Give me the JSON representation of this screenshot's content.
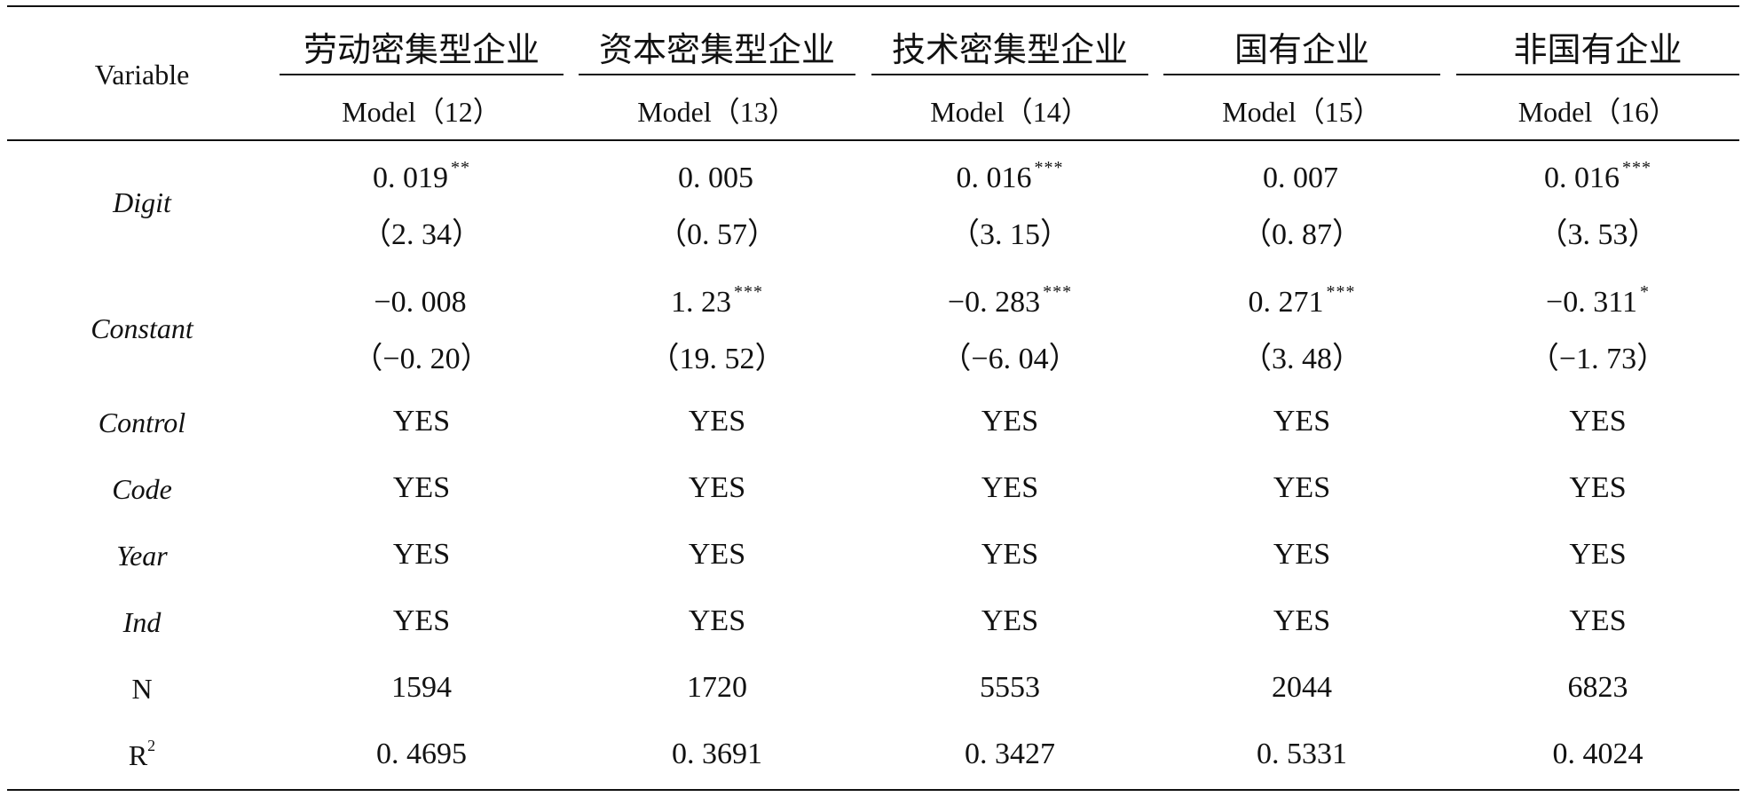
{
  "header": {
    "variable_label": "Variable",
    "groups": [
      "劳动密集型企业",
      "资本密集型企业",
      "技术密集型企业",
      "国有企业",
      "非国有企业"
    ],
    "models": [
      "Model（12）",
      "Model（13）",
      "Model（14）",
      "Model（15）",
      "Model（16）"
    ]
  },
  "rows": {
    "digit": {
      "label": "Digit",
      "coef": [
        "0. 019",
        "0. 005",
        "0. 016",
        "0. 007",
        "0. 016"
      ],
      "stars": [
        "**",
        "",
        "***",
        "",
        "***"
      ],
      "t": [
        "（2. 34）",
        "（0. 57）",
        "（3. 15）",
        "（0. 87）",
        "（3. 53）"
      ]
    },
    "constant": {
      "label": "Constant",
      "coef": [
        "−0. 008",
        "1. 23",
        "−0. 283",
        "0. 271",
        "−0. 311"
      ],
      "stars": [
        "",
        "***",
        "***",
        "***",
        "*"
      ],
      "t": [
        "（−0. 20）",
        "（19. 52）",
        "（−6. 04）",
        "（3. 48）",
        "（−1. 73）"
      ]
    },
    "control": {
      "label": "Control",
      "values": [
        "YES",
        "YES",
        "YES",
        "YES",
        "YES"
      ]
    },
    "code": {
      "label": "Code",
      "values": [
        "YES",
        "YES",
        "YES",
        "YES",
        "YES"
      ]
    },
    "year": {
      "label": "Year",
      "values": [
        "YES",
        "YES",
        "YES",
        "YES",
        "YES"
      ]
    },
    "ind": {
      "label": "Ind",
      "values": [
        "YES",
        "YES",
        "YES",
        "YES",
        "YES"
      ]
    },
    "n": {
      "label": "N",
      "values": [
        "1594",
        "1720",
        "5553",
        "2044",
        "6823"
      ]
    },
    "r2": {
      "label": "R",
      "label_sup": "2",
      "values": [
        "0. 4695",
        "0. 3691",
        "0. 3427",
        "0. 5331",
        "0. 4024"
      ]
    }
  }
}
